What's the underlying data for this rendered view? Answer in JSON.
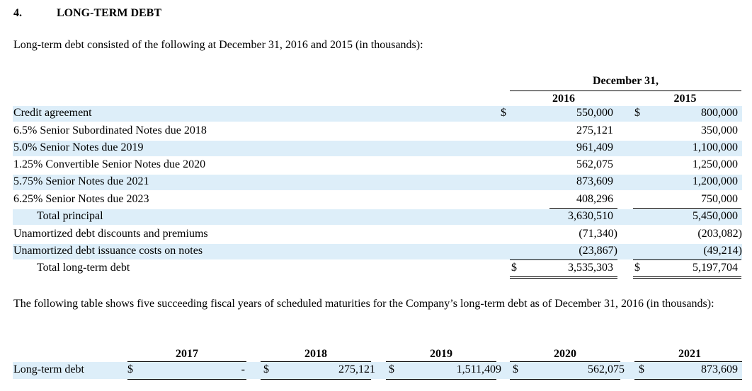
{
  "section": {
    "number": "4.",
    "title": "LONG-TERM DEBT",
    "intro": "Long-term debt consisted of the following at December 31, 2016 and 2015 (in thousands):"
  },
  "debt_table": {
    "group_header": "December 31,",
    "col1_year": "2016",
    "col2_year": "2015",
    "rows": [
      {
        "label": "Credit agreement",
        "dollar1": "$",
        "v2016": "550,000",
        "dollar2": "$",
        "v2015": "800,000"
      },
      {
        "label": "6.5% Senior Subordinated Notes due 2018",
        "v2016": "275,121",
        "v2015": "350,000"
      },
      {
        "label": "5.0% Senior Notes due 2019",
        "v2016": "961,409",
        "v2015": "1,100,000"
      },
      {
        "label": "1.25% Convertible Senior Notes due 2020",
        "v2016": "562,075",
        "v2015": "1,250,000"
      },
      {
        "label": "5.75% Senior Notes due 2021",
        "v2016": "873,609",
        "v2015": "1,200,000"
      },
      {
        "label": "6.25% Senior Notes due 2023",
        "v2016": "408,296",
        "v2015": "750,000"
      },
      {
        "label": "Total principal",
        "v2016": "3,630,510",
        "v2015": "5,450,000"
      },
      {
        "label": "Unamortized debt discounts and premiums",
        "v2016": "(71,340)",
        "v2015": "(203,082)"
      },
      {
        "label": "Unamortized debt issuance costs on notes",
        "v2016": "(23,867)",
        "v2015": "(49,214)"
      },
      {
        "label": "Total long-term debt",
        "dollar1": "$",
        "v2016": "3,535,303",
        "dollar2": "$",
        "v2015": "5,197,704"
      }
    ]
  },
  "maturities": {
    "intro": "The following table shows five succeeding fiscal years of scheduled maturities for the Company’s long-term debt as of December 31, 2016 (in thousands):",
    "years": [
      "2017",
      "2018",
      "2019",
      "2020",
      "2021"
    ],
    "row_label": "Long-term debt",
    "dollar": "$",
    "values": [
      "-",
      "275,121",
      "1,511,409",
      "562,075",
      "873,609"
    ]
  }
}
